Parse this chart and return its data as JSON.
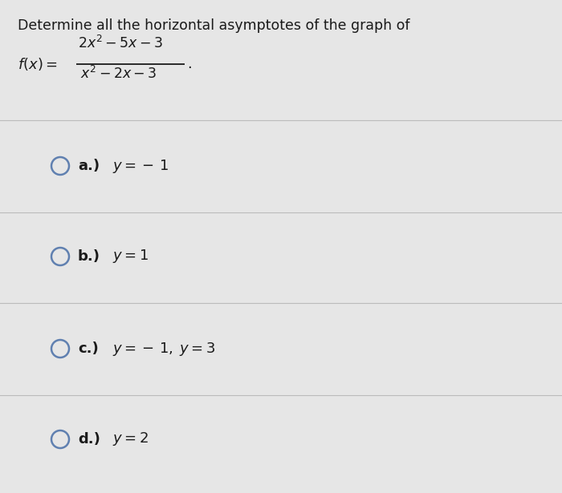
{
  "title": "Determine all the horizontal asymptotes of the graph of",
  "bg_color": "#e8e8e8",
  "text_color": "#1a1a1a",
  "circle_color": "#6080b0",
  "separator_color": "#bbbbbb",
  "title_fontsize": 12.5,
  "option_fontsize": 13,
  "fig_width": 7.0,
  "fig_height": 6.15,
  "options": [
    {
      "label": "a.)",
      "math": "$y = -\\,1$"
    },
    {
      "label": "b.)",
      "math": "$y = 1$"
    },
    {
      "label": "c.)",
      "math": "$y = -\\,1,\\; y = 3$"
    },
    {
      "label": "d.)",
      "math": "$y = 2$"
    }
  ]
}
